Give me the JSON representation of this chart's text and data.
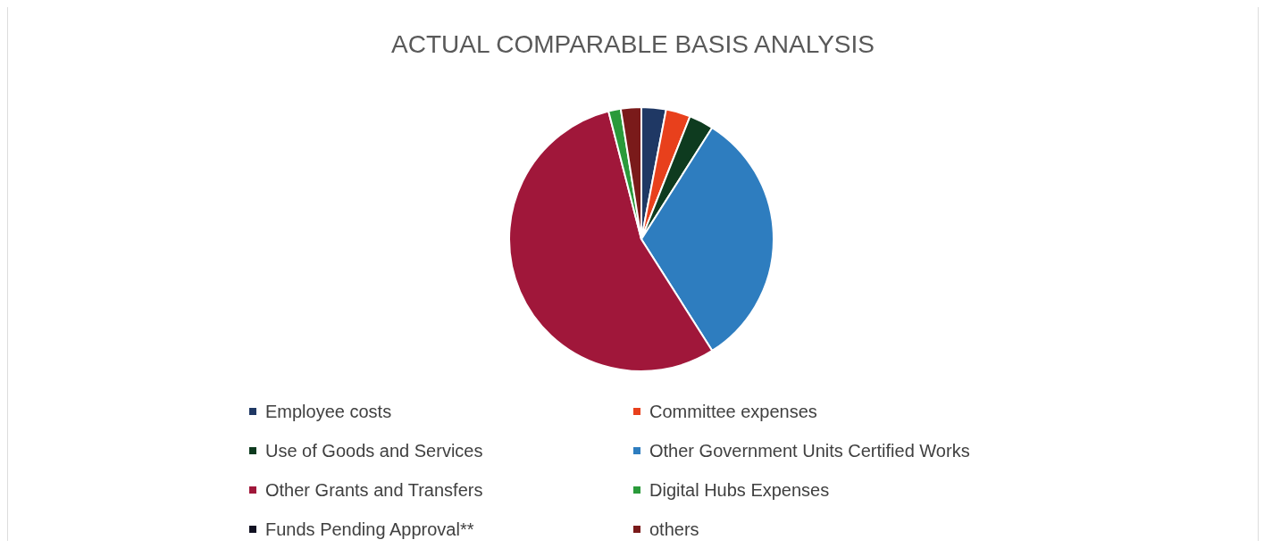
{
  "chart_data": {
    "type": "pie",
    "title": "ACTUAL COMPARABLE BASIS ANALYSIS",
    "categories": [
      "Employee costs",
      "Committee expenses",
      "Use of Goods and Services",
      "Other Government Units Certified Works",
      "Other Grants and Transfers",
      "Digital Hubs Expenses",
      "Funds Pending Approval**",
      "others"
    ],
    "values": [
      3,
      3,
      3,
      32,
      55,
      1.5,
      0,
      2.5
    ],
    "colors": [
      "#1f3864",
      "#e8401c",
      "#0e3b1f",
      "#2e7dbf",
      "#a0173a",
      "#2a9a3a",
      "#111122",
      "#7a1a1a"
    ],
    "legend": "bottom"
  }
}
